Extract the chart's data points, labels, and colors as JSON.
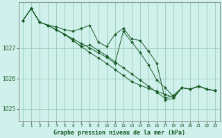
{
  "background_color": "#cff0eb",
  "grid_color": "#99ccbb",
  "line_color": "#1a5c28",
  "marker_color": "#1a5c28",
  "title": "Graphe pression niveau de la mer (hPa)",
  "xlim": [
    -0.5,
    23.5
  ],
  "ylim": [
    1024.6,
    1028.5
  ],
  "yticks": [
    1025,
    1026,
    1027
  ],
  "xticks": [
    0,
    1,
    2,
    3,
    4,
    5,
    6,
    7,
    8,
    9,
    10,
    11,
    12,
    13,
    14,
    15,
    16,
    17,
    18,
    19,
    20,
    21,
    22,
    23
  ],
  "series": [
    [
      1027.9,
      1028.3,
      1027.85,
      1027.75,
      1027.7,
      1027.6,
      1027.55,
      1027.65,
      1027.75,
      1027.2,
      1027.05,
      1027.45,
      1027.65,
      1027.3,
      1027.25,
      1026.9,
      1026.5,
      1025.3,
      1025.35,
      1025.7,
      1025.65,
      1025.75,
      1025.65,
      1025.6
    ],
    [
      1027.9,
      1028.3,
      1027.85,
      1027.75,
      1027.6,
      1027.45,
      1027.3,
      1027.15,
      1027.0,
      1026.85,
      1026.7,
      1026.5,
      1027.55,
      1027.2,
      1026.85,
      1026.45,
      1025.95,
      1025.7,
      1025.4,
      1025.7,
      1025.65,
      1025.75,
      1025.65,
      1025.6
    ],
    [
      1027.9,
      1028.3,
      1027.85,
      1027.75,
      1027.6,
      1027.45,
      1027.25,
      1027.05,
      1026.85,
      1026.68,
      1026.5,
      1026.3,
      1026.1,
      1025.9,
      1025.78,
      1025.68,
      1025.58,
      1025.48,
      1025.38,
      1025.7,
      1025.65,
      1025.75,
      1025.65,
      1025.6
    ],
    [
      1027.9,
      1028.3,
      1027.85,
      1027.75,
      1027.6,
      1027.45,
      1027.25,
      1027.05,
      1027.1,
      1026.92,
      1026.75,
      1026.55,
      1026.35,
      1026.15,
      1025.95,
      1025.75,
      1025.55,
      1025.35,
      1025.45,
      1025.7,
      1025.65,
      1025.75,
      1025.65,
      1025.6
    ]
  ]
}
